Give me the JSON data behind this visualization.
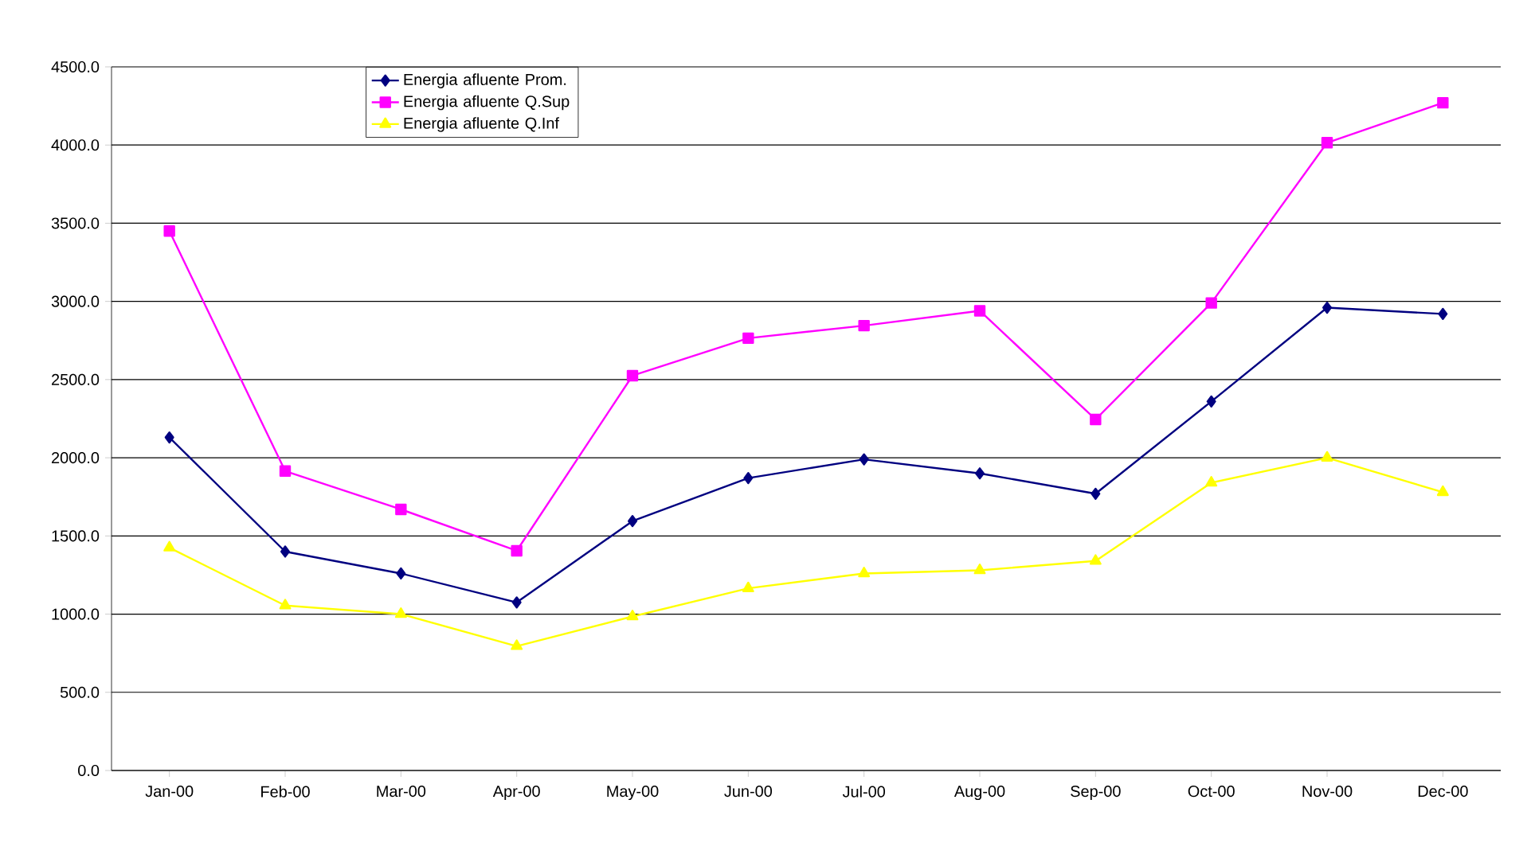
{
  "chart_data": {
    "type": "line",
    "categories": [
      "Jan-00",
      "Feb-00",
      "Mar-00",
      "Apr-00",
      "May-00",
      "Jun-00",
      "Jul-00",
      "Aug-00",
      "Sep-00",
      "Oct-00",
      "Nov-00",
      "Dec-00"
    ],
    "series": [
      {
        "name": "Energia afluente Prom.",
        "color": "#000080",
        "marker": "diamond",
        "values": [
          2130,
          1400,
          1260,
          1075,
          1595,
          1870,
          1990,
          1900,
          1770,
          2360,
          2960,
          2920
        ]
      },
      {
        "name": "Energia afluente Q.Sup",
        "color": "#ff00ff",
        "marker": "square",
        "values": [
          3450,
          1915,
          1670,
          1405,
          2525,
          2765,
          2845,
          2940,
          2245,
          2990,
          4015,
          4270
        ]
      },
      {
        "name": "Energia afluente Q.Inf",
        "color": "#ffff00",
        "marker": "triangle",
        "values": [
          1425,
          1055,
          1000,
          795,
          985,
          1165,
          1260,
          1280,
          1340,
          1840,
          2000,
          1780
        ]
      }
    ],
    "ylim": [
      0,
      4500
    ],
    "yticks": [
      {
        "value": 0,
        "label": "0.0"
      },
      {
        "value": 500,
        "label": "500.0"
      },
      {
        "value": 1000,
        "label": "1000.0"
      },
      {
        "value": 1500,
        "label": "1500.0"
      },
      {
        "value": 2000,
        "label": "2000.0"
      },
      {
        "value": 2500,
        "label": "2500.0"
      },
      {
        "value": 3000,
        "label": "3000.0"
      },
      {
        "value": 3500,
        "label": "3500.0"
      },
      {
        "value": 4000,
        "label": "4000.0"
      },
      {
        "value": 4500,
        "label": "4500.0"
      }
    ],
    "grid": "y",
    "legend": "top left",
    "line_style": "solid"
  }
}
